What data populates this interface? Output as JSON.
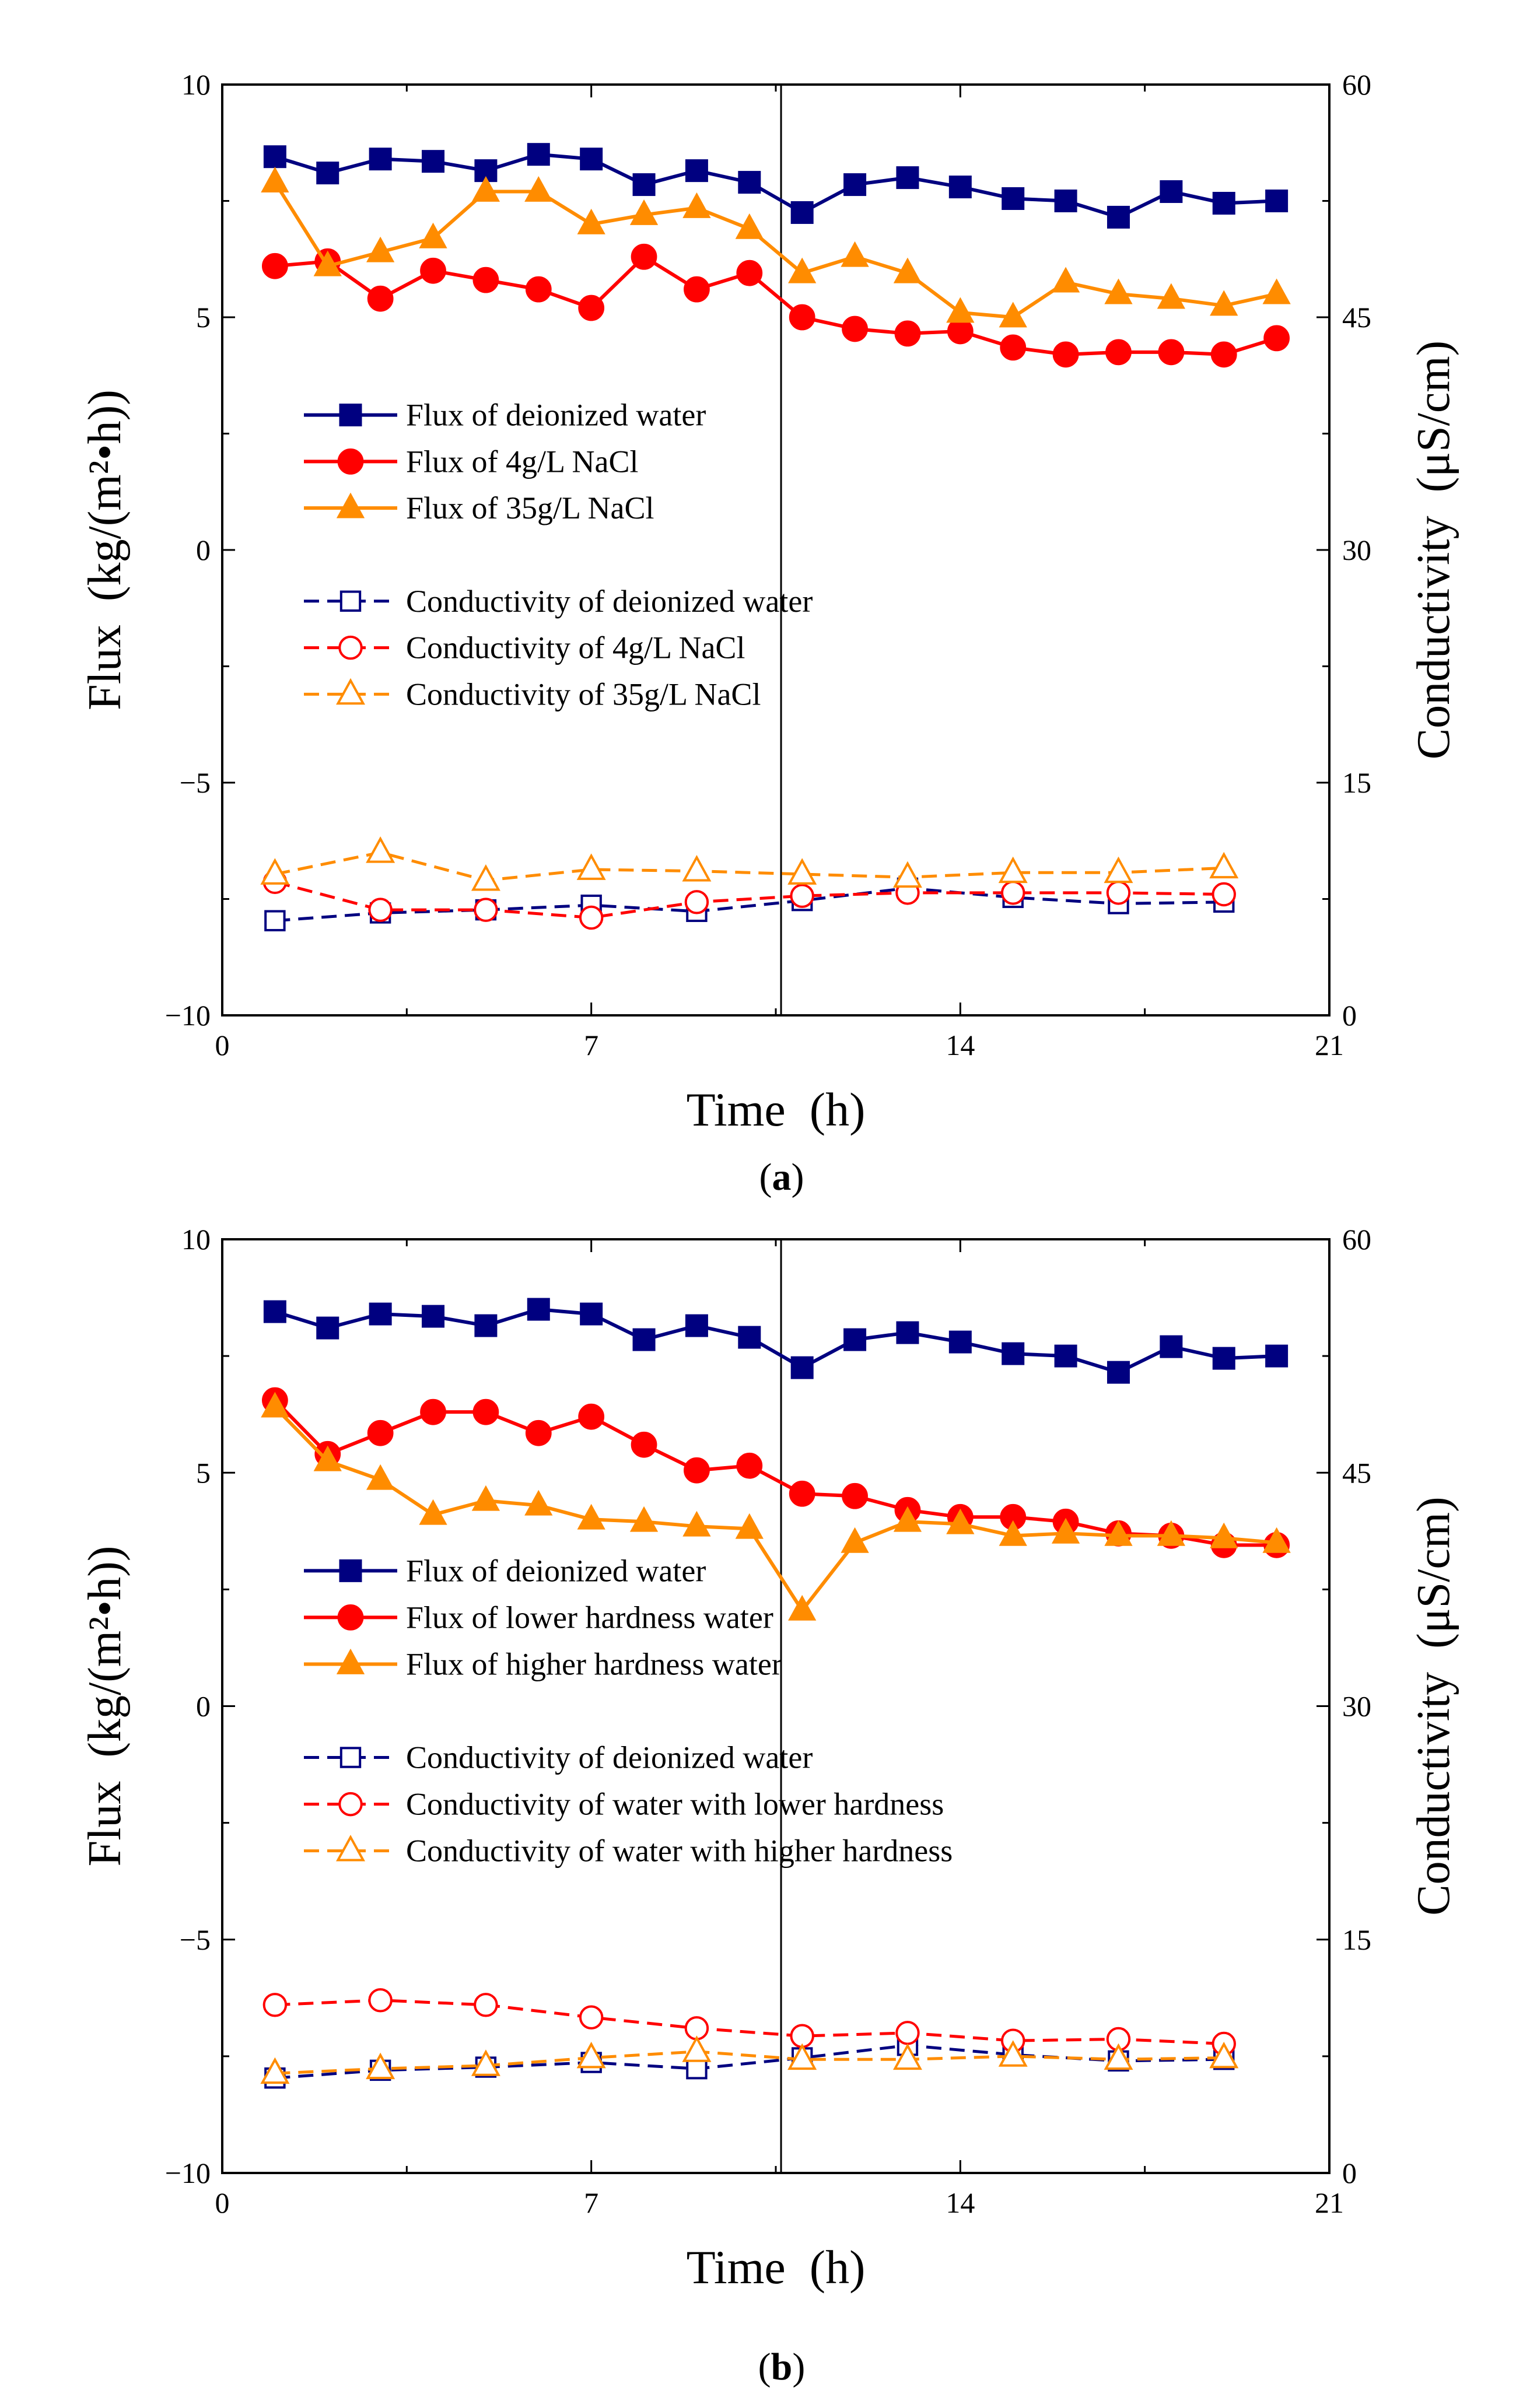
{
  "chart_data": [
    {
      "type": "line",
      "panel_label": "a",
      "xlabel": "Time  (h)",
      "ylabel_left": "Flux  (kg/(m²•h))",
      "ylabel_right": "Conductivity  (μS/cm)",
      "x_ticks": [
        "0",
        "7",
        "14",
        "21"
      ],
      "y_left_ticks": [
        "−10",
        "−5",
        "0",
        "5",
        "10"
      ],
      "y_right_ticks": [
        "0",
        "15",
        "30",
        "45",
        "60"
      ],
      "xlim": [
        0,
        21
      ],
      "ylim_left": [
        -10,
        10
      ],
      "ylim_right": [
        0,
        60
      ],
      "vline_x": 10.6,
      "series": [
        {
          "name": "Flux of deionized water",
          "axis": "left",
          "marker": "square",
          "fill": true,
          "dash": false,
          "color": "#000080",
          "x": [
            1,
            2,
            3,
            4,
            5,
            6,
            7,
            8,
            9,
            10,
            11,
            12,
            13,
            14,
            15,
            16,
            17,
            18,
            19,
            20
          ],
          "y": [
            8.45,
            8.1,
            8.4,
            8.35,
            8.15,
            8.5,
            8.4,
            7.85,
            8.15,
            7.9,
            7.25,
            7.85,
            8.0,
            7.8,
            7.55,
            7.5,
            7.15,
            7.7,
            7.45,
            7.5
          ]
        },
        {
          "name": "Flux of 4g/L NaCl",
          "axis": "left",
          "marker": "circle",
          "fill": true,
          "dash": false,
          "color": "#ff0000",
          "x": [
            1,
            2,
            3,
            4,
            5,
            6,
            7,
            8,
            9,
            10,
            11,
            12,
            13,
            14,
            15,
            16,
            17,
            18,
            19,
            20
          ],
          "y": [
            6.1,
            6.2,
            5.4,
            6.0,
            5.8,
            5.6,
            5.2,
            6.3,
            5.6,
            5.95,
            5.0,
            4.75,
            4.65,
            4.7,
            4.35,
            4.2,
            4.25,
            4.25,
            4.2,
            4.55
          ]
        },
        {
          "name": "Flux of 35g/L NaCl",
          "axis": "left",
          "marker": "triangle",
          "fill": true,
          "dash": false,
          "color": "#ff8c00",
          "x": [
            1,
            2,
            3,
            4,
            5,
            6,
            7,
            8,
            9,
            10,
            11,
            12,
            13,
            14,
            15,
            16,
            17,
            18,
            19,
            20
          ],
          "y": [
            7.9,
            6.1,
            6.4,
            6.7,
            7.7,
            7.7,
            7.0,
            7.2,
            7.35,
            6.9,
            5.95,
            6.3,
            5.95,
            5.1,
            5.0,
            5.75,
            5.5,
            5.4,
            5.25,
            5.5
          ]
        },
        {
          "name": "Conductivity of deionized water",
          "axis": "right",
          "marker": "square",
          "fill": false,
          "dash": true,
          "color": "#000080",
          "x": [
            1,
            3,
            5,
            7,
            9,
            11,
            13,
            15,
            17,
            19
          ],
          "y": [
            6.1,
            6.6,
            6.8,
            7.1,
            6.7,
            7.4,
            8.2,
            7.6,
            7.2,
            7.3
          ]
        },
        {
          "name": "Conductivity of 4g/L NaCl",
          "axis": "right",
          "marker": "circle",
          "fill": false,
          "dash": true,
          "color": "#ff0000",
          "x": [
            1,
            3,
            5,
            7,
            9,
            11,
            13,
            15,
            17,
            19
          ],
          "y": [
            8.6,
            6.8,
            6.8,
            6.3,
            7.3,
            7.7,
            7.9,
            7.9,
            7.9,
            7.8
          ]
        },
        {
          "name": "Conductivity of 35g/L NaCl",
          "axis": "right",
          "marker": "triangle",
          "fill": false,
          "dash": true,
          "color": "#ff8c00",
          "x": [
            1,
            3,
            5,
            7,
            9,
            11,
            13,
            15,
            17,
            19
          ],
          "y": [
            9.1,
            10.5,
            8.7,
            9.4,
            9.3,
            9.1,
            8.9,
            9.2,
            9.2,
            9.5
          ]
        }
      ],
      "annotations": []
    },
    {
      "type": "line",
      "panel_label": "b",
      "xlabel": "Time  (h)",
      "ylabel_left": "Flux  (kg/(m²•h))",
      "ylabel_right": "Conductivity  (μS/cm)",
      "x_ticks": [
        "0",
        "7",
        "14",
        "21"
      ],
      "y_left_ticks": [
        "−10",
        "−5",
        "0",
        "5",
        "10"
      ],
      "y_right_ticks": [
        "0",
        "15",
        "30",
        "45",
        "60"
      ],
      "xlim": [
        0,
        21
      ],
      "ylim_left": [
        -10,
        10
      ],
      "ylim_right": [
        0,
        60
      ],
      "vline_x": 10.6,
      "series": [
        {
          "name": "Flux of deionized water",
          "axis": "left",
          "marker": "square",
          "fill": true,
          "dash": false,
          "color": "#000080",
          "x": [
            1,
            2,
            3,
            4,
            5,
            6,
            7,
            8,
            9,
            10,
            11,
            12,
            13,
            14,
            15,
            16,
            17,
            18,
            19,
            20
          ],
          "y": [
            8.45,
            8.1,
            8.4,
            8.35,
            8.15,
            8.5,
            8.4,
            7.85,
            8.15,
            7.9,
            7.25,
            7.85,
            8.0,
            7.8,
            7.55,
            7.5,
            7.15,
            7.7,
            7.45,
            7.5
          ]
        },
        {
          "name": "Flux of lower hardness water",
          "axis": "left",
          "marker": "circle",
          "fill": true,
          "dash": false,
          "color": "#ff0000",
          "x": [
            1,
            2,
            3,
            4,
            5,
            6,
            7,
            8,
            9,
            10,
            11,
            12,
            13,
            14,
            15,
            16,
            17,
            18,
            19,
            20
          ],
          "y": [
            6.55,
            5.4,
            5.85,
            6.3,
            6.3,
            5.85,
            6.2,
            5.6,
            5.05,
            5.15,
            4.55,
            4.5,
            4.2,
            4.05,
            4.05,
            3.95,
            3.7,
            3.65,
            3.45,
            3.45
          ]
        },
        {
          "name": "Flux of higher hardness water",
          "axis": "left",
          "marker": "triangle",
          "fill": true,
          "dash": false,
          "color": "#ff8c00",
          "x": [
            1,
            2,
            3,
            4,
            5,
            6,
            7,
            8,
            9,
            10,
            11,
            12,
            13,
            14,
            15,
            16,
            17,
            18,
            19,
            20
          ],
          "y": [
            6.4,
            5.25,
            4.85,
            4.1,
            4.4,
            4.3,
            4.0,
            3.95,
            3.85,
            3.8,
            2.05,
            3.5,
            3.95,
            3.9,
            3.65,
            3.7,
            3.65,
            3.65,
            3.6,
            3.5
          ]
        },
        {
          "name": "Conductivity of deionized water",
          "axis": "right",
          "marker": "square",
          "fill": false,
          "dash": true,
          "color": "#000080",
          "x": [
            1,
            3,
            5,
            7,
            9,
            11,
            13,
            15,
            17,
            19
          ],
          "y": [
            6.1,
            6.6,
            6.8,
            7.1,
            6.7,
            7.4,
            8.2,
            7.6,
            7.2,
            7.3
          ]
        },
        {
          "name": "Conductivity of water with lower hardness",
          "axis": "right",
          "marker": "circle",
          "fill": false,
          "dash": true,
          "color": "#ff0000",
          "x": [
            1,
            3,
            5,
            7,
            9,
            11,
            13,
            15,
            17,
            19
          ],
          "y": [
            10.8,
            11.1,
            10.8,
            10.0,
            9.3,
            8.8,
            9.0,
            8.5,
            8.6,
            8.3
          ]
        },
        {
          "name": "Conductivity of water with higher hardness",
          "axis": "right",
          "marker": "triangle",
          "fill": false,
          "dash": true,
          "color": "#ff8c00",
          "x": [
            1,
            3,
            5,
            7,
            9,
            11,
            13,
            15,
            17,
            19
          ],
          "y": [
            6.4,
            6.7,
            6.9,
            7.4,
            7.8,
            7.3,
            7.3,
            7.5,
            7.3,
            7.4
          ]
        }
      ],
      "annotations": []
    }
  ]
}
